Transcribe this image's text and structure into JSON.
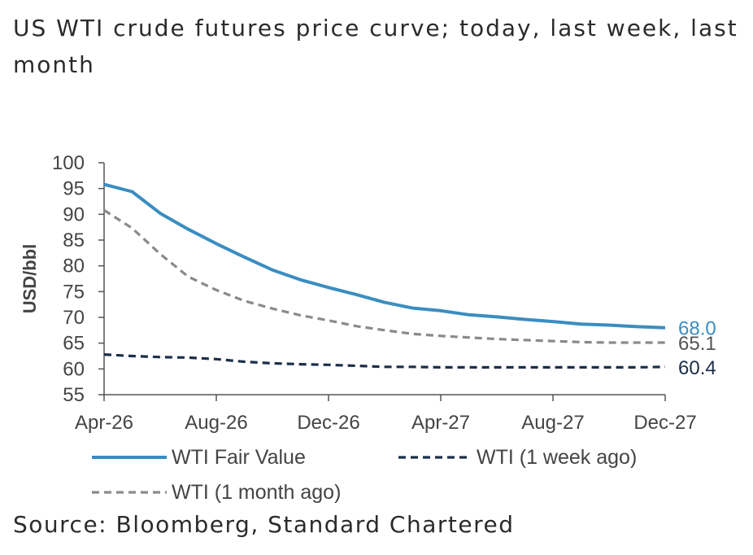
{
  "title": "US WTI crude futures price curve; today, last week, last month",
  "source": "Source: Bloomberg, Standard Chartered",
  "chart_data": {
    "type": "line",
    "ylabel": "USD/bbl",
    "ylim": [
      55,
      100
    ],
    "yticks": [
      55,
      60,
      65,
      70,
      75,
      80,
      85,
      90,
      95,
      100
    ],
    "x_tick_labels": [
      "Apr-26",
      "Aug-26",
      "Dec-26",
      "Apr-27",
      "Aug-27",
      "Dec-27"
    ],
    "x_tick_positions": [
      0,
      4,
      8,
      12,
      16,
      20
    ],
    "x": [
      0,
      1,
      2,
      3,
      4,
      5,
      6,
      7,
      8,
      9,
      10,
      11,
      12,
      13,
      14,
      15,
      16,
      17,
      18,
      19,
      20
    ],
    "series": [
      {
        "name": "WTI Fair Value",
        "style": "solid",
        "color": "#3a8dc0",
        "values": [
          95.8,
          94.4,
          90.2,
          87.1,
          84.3,
          81.7,
          79.2,
          77.3,
          75.8,
          74.4,
          72.9,
          71.8,
          71.3,
          70.5,
          70.1,
          69.6,
          69.2,
          68.7,
          68.5,
          68.2,
          68.0
        ],
        "end_label": "68.0"
      },
      {
        "name": "WTI (1 week ago)",
        "style": "dashed",
        "color": "#1c2e4a",
        "values": [
          62.8,
          62.5,
          62.3,
          62.2,
          61.9,
          61.4,
          61.1,
          60.9,
          60.8,
          60.6,
          60.4,
          60.4,
          60.3,
          60.3,
          60.3,
          60.3,
          60.3,
          60.3,
          60.3,
          60.3,
          60.4
        ],
        "end_label": "60.4"
      },
      {
        "name": "WTI (1 month ago)",
        "style": "dashed",
        "color": "#8a8a8a",
        "values": [
          90.8,
          87.3,
          82.3,
          77.9,
          75.3,
          73.2,
          71.7,
          70.4,
          69.4,
          68.3,
          67.5,
          66.8,
          66.4,
          66.1,
          65.8,
          65.6,
          65.4,
          65.2,
          65.1,
          65.1,
          65.1
        ],
        "end_label": "65.1"
      }
    ],
    "legend": [
      "WTI Fair Value",
      "WTI (1 week ago)",
      "WTI (1 month ago)"
    ]
  }
}
